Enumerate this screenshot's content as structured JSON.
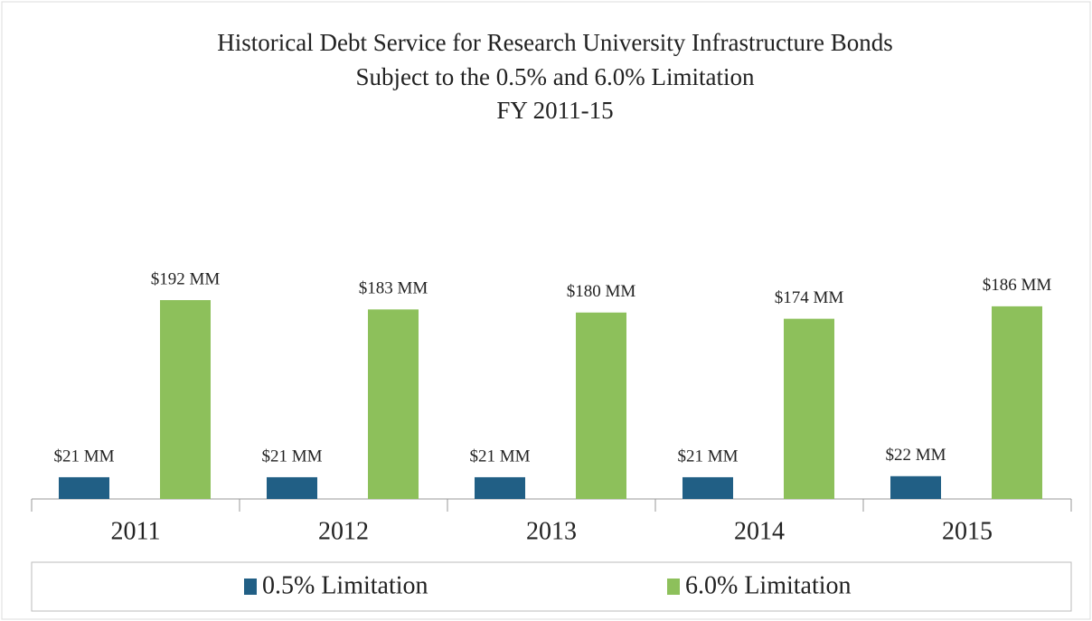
{
  "chart_data": {
    "type": "bar",
    "title": [
      "Historical Debt Service for Research University Infrastructure Bonds",
      "Subject to the 0.5% and 6.0% Limitation",
      "FY 2011-15"
    ],
    "categories": [
      "2011",
      "2012",
      "2013",
      "2014",
      "2015"
    ],
    "series": [
      {
        "name": "0.5% Limitation",
        "color": "#215f85",
        "values": [
          21,
          21,
          21,
          21,
          22
        ],
        "value_labels": [
          "$21 MM",
          "$21 MM",
          "$21 MM",
          "$21 MM",
          "$22 MM"
        ]
      },
      {
        "name": "6.0% Limitation",
        "color": "#8dc05b",
        "values": [
          192,
          183,
          180,
          174,
          186
        ],
        "value_labels": [
          "$192 MM",
          "$183 MM",
          "$180 MM",
          "$174 MM",
          "$186 MM"
        ]
      }
    ],
    "legend": "bottom"
  }
}
